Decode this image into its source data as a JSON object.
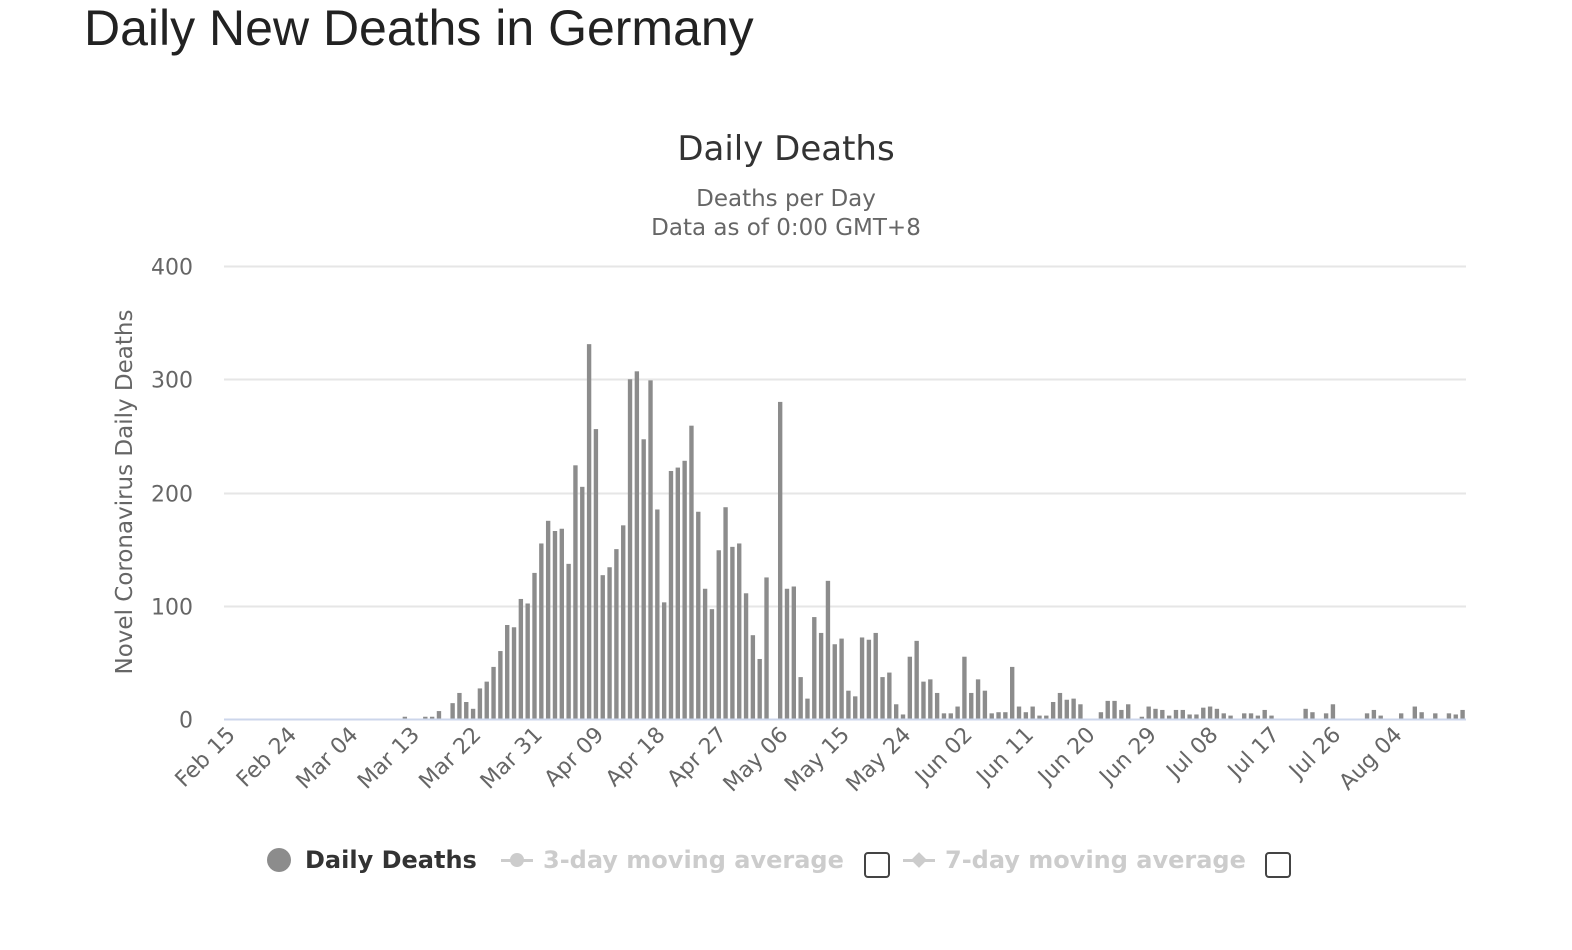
{
  "page": {
    "title": "Daily New Deaths in Germany"
  },
  "legend": {
    "daily_label": "Daily Deaths",
    "ma3_label": "3-day moving average",
    "ma7_label": "7-day moving average"
  },
  "colors": {
    "bar": "#8c8c8c",
    "grid": "#e6e6e6",
    "axis_line": "#ccd6eb",
    "legend_off": "#cccccc",
    "text": "#333333"
  },
  "chart_data": {
    "type": "bar",
    "title": "Daily Deaths",
    "subtitle_lines": [
      "Deaths per Day",
      "Data as of 0:00 GMT+8"
    ],
    "ylabel": "Novel Coronavirus Daily Deaths",
    "xlabel": "",
    "ylim": [
      0,
      400
    ],
    "yticks": [
      0,
      100,
      200,
      300,
      400
    ],
    "start_date": "Feb 15",
    "x_tick_labels": [
      "Feb 15",
      "Feb 24",
      "Mar 04",
      "Mar 13",
      "Mar 22",
      "Mar 31",
      "Apr 09",
      "Apr 18",
      "Apr 27",
      "May 06",
      "May 15",
      "May 24",
      "Jun 02",
      "Jun 11",
      "Jun 20",
      "Jun 29",
      "Jul 08",
      "Jul 17",
      "Jul 26",
      "Aug 04"
    ],
    "x_tick_interval_days": 9,
    "grid": true,
    "legend_position": "bottom-center",
    "series": [
      {
        "name": "Daily Deaths",
        "values": [
          0,
          0,
          0,
          0,
          0,
          0,
          0,
          0,
          0,
          0,
          0,
          0,
          0,
          0,
          0,
          0,
          0,
          0,
          0,
          0,
          0,
          0,
          0,
          0,
          0,
          0,
          2,
          0,
          0,
          2,
          2,
          7,
          0,
          14,
          23,
          15,
          9,
          27,
          33,
          46,
          60,
          83,
          81,
          106,
          102,
          129,
          155,
          175,
          166,
          168,
          137,
          224,
          205,
          331,
          256,
          127,
          134,
          150,
          171,
          300,
          307,
          247,
          299,
          185,
          103,
          219,
          222,
          228,
          259,
          183,
          115,
          97,
          149,
          187,
          152,
          155,
          111,
          74,
          53,
          125,
          0,
          280,
          115,
          117,
          37,
          18,
          90,
          76,
          122,
          66,
          71,
          25,
          20,
          72,
          70,
          76,
          37,
          41,
          13,
          4,
          55,
          69,
          33,
          35,
          23,
          5,
          5,
          11,
          55,
          23,
          35,
          25,
          5,
          6,
          6,
          46,
          11,
          6,
          11,
          3,
          3,
          15,
          23,
          17,
          18,
          13,
          0,
          0,
          6,
          16,
          16,
          8,
          13,
          0,
          2,
          11,
          9,
          8,
          3,
          8,
          8,
          4,
          4,
          10,
          11,
          9,
          5,
          3,
          0,
          5,
          5,
          3,
          8,
          3,
          0,
          0,
          0,
          0,
          9,
          6,
          0,
          5,
          13,
          0,
          0,
          0,
          0,
          5,
          8,
          3,
          0,
          0,
          5,
          0,
          11,
          6,
          0,
          5,
          0,
          5,
          4,
          8
        ]
      },
      {
        "name": "3-day moving average",
        "visible": false
      },
      {
        "name": "7-day moving average",
        "visible": false
      }
    ]
  }
}
